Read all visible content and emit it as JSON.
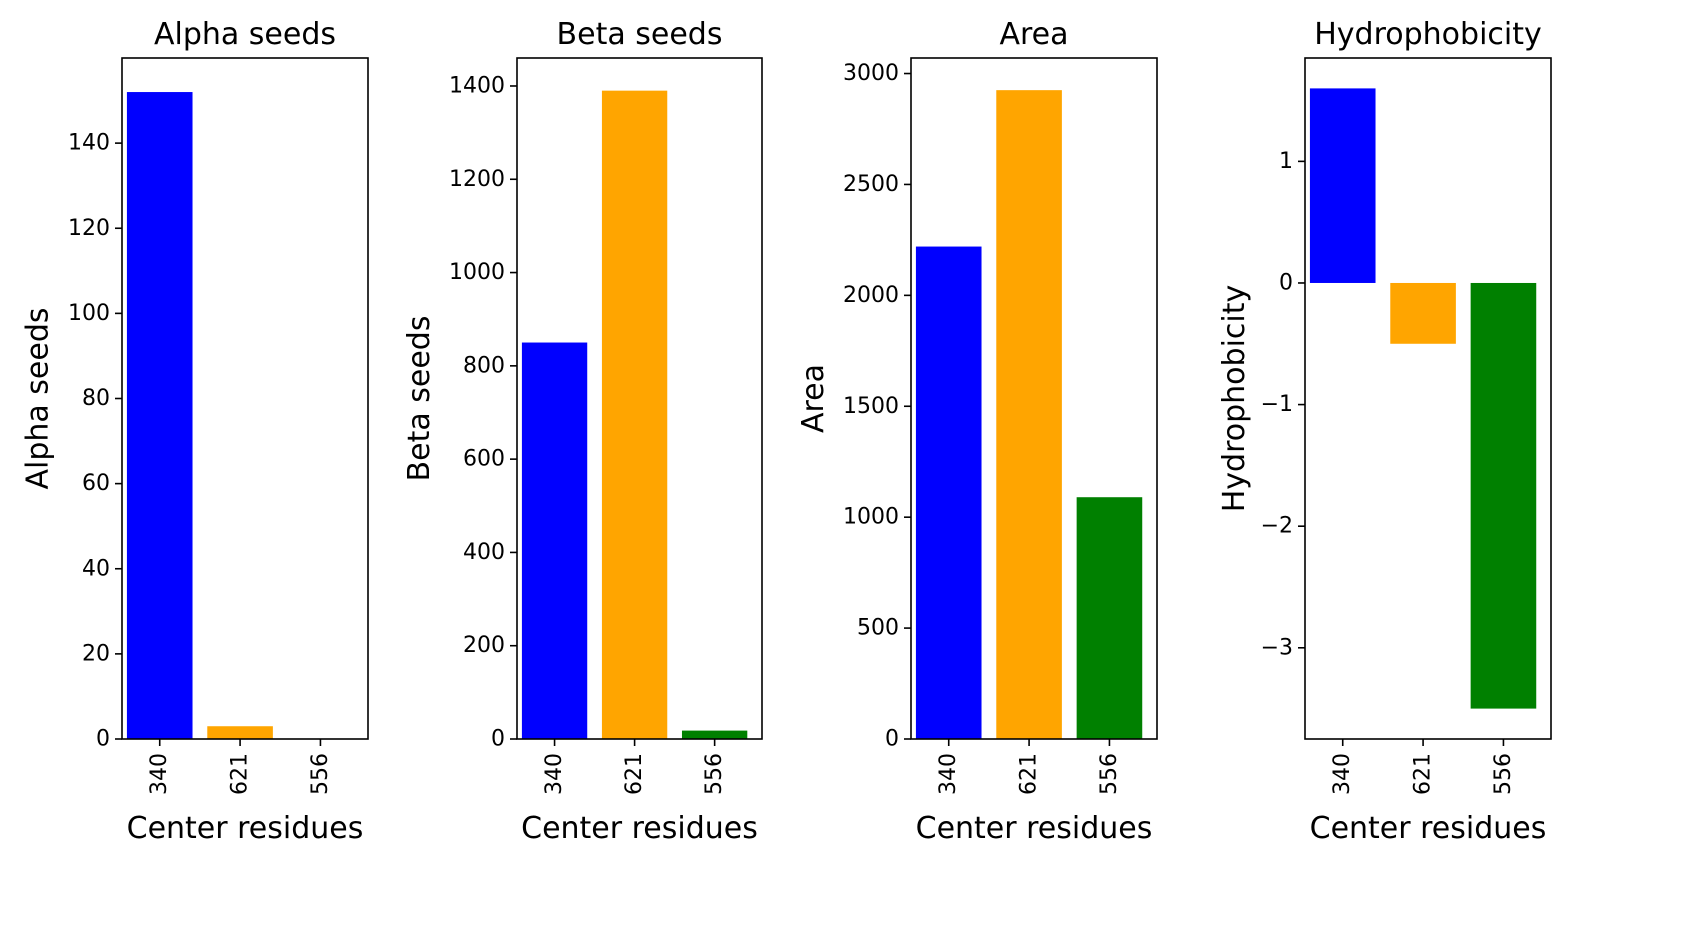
{
  "figure": {
    "background": "#ffffff"
  },
  "chart_data": [
    {
      "type": "bar",
      "title": "Alpha seeds",
      "xlabel": "Center residues",
      "ylabel": "Alpha seeds",
      "categories": [
        "340",
        "621",
        "556"
      ],
      "values": [
        152,
        3,
        0
      ],
      "colors": [
        "#0000ff",
        "#ffa500",
        "#008000"
      ],
      "ylim": [
        0,
        160
      ],
      "yticks": [
        0,
        20,
        40,
        60,
        80,
        100,
        120,
        140
      ],
      "ytick_labels": [
        "0",
        "20",
        "40",
        "60",
        "80",
        "100",
        "120",
        "140"
      ],
      "grid": false,
      "legend": "none"
    },
    {
      "type": "bar",
      "title": "Beta seeds",
      "xlabel": "Center residues",
      "ylabel": "Beta seeds",
      "categories": [
        "340",
        "621",
        "556"
      ],
      "values": [
        850,
        1390,
        18
      ],
      "colors": [
        "#0000ff",
        "#ffa500",
        "#008000"
      ],
      "ylim": [
        0,
        1460
      ],
      "yticks": [
        0,
        200,
        400,
        600,
        800,
        1000,
        1200,
        1400
      ],
      "ytick_labels": [
        "0",
        "200",
        "400",
        "600",
        "800",
        "1000",
        "1200",
        "1400"
      ],
      "grid": false,
      "legend": "none"
    },
    {
      "type": "bar",
      "title": "Area",
      "xlabel": "Center residues",
      "ylabel": "Area",
      "categories": [
        "340",
        "621",
        "556"
      ],
      "values": [
        2220,
        2925,
        1090
      ],
      "colors": [
        "#0000ff",
        "#ffa500",
        "#008000"
      ],
      "ylim": [
        0,
        3070
      ],
      "yticks": [
        0,
        500,
        1000,
        1500,
        2000,
        2500,
        3000
      ],
      "ytick_labels": [
        "0",
        "500",
        "1000",
        "1500",
        "2000",
        "2500",
        "3000"
      ],
      "grid": false,
      "legend": "none"
    },
    {
      "type": "bar",
      "title": "Hydrophobicity",
      "xlabel": "Center residues",
      "ylabel": "Hydrophobicity",
      "categories": [
        "340",
        "621",
        "556"
      ],
      "values": [
        1.6,
        -0.5,
        -3.5
      ],
      "colors": [
        "#0000ff",
        "#ffa500",
        "#008000"
      ],
      "ylim": [
        -3.75,
        1.85
      ],
      "yticks": [
        -3,
        -2,
        -1,
        0,
        1
      ],
      "ytick_labels": [
        "−3",
        "−2",
        "−1",
        "0",
        "1"
      ],
      "grid": false,
      "legend": "none"
    }
  ]
}
